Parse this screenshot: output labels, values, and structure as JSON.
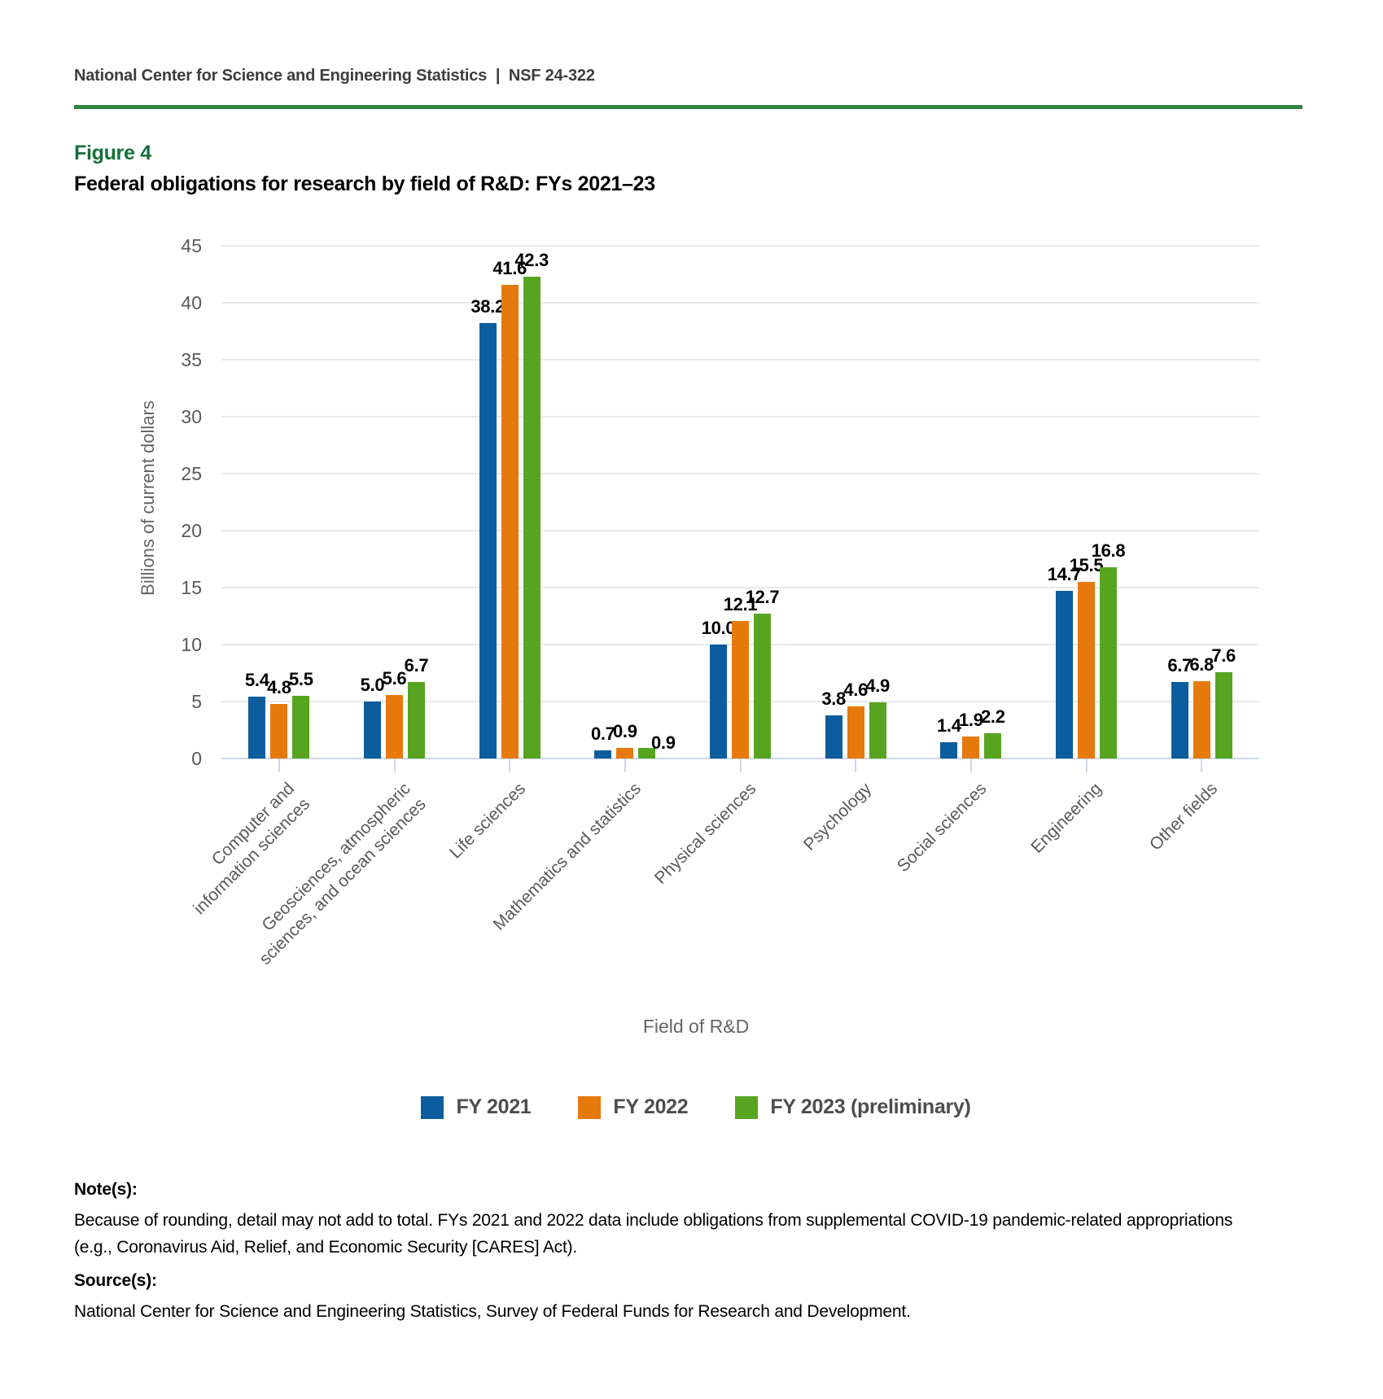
{
  "header": {
    "text": "National Center for Science and Engineering Statistics  |  NSF 24-322"
  },
  "figure": {
    "label": "Figure 4",
    "title": "Federal obligations for research by field of R&D: FYs 2021–23"
  },
  "chart_data": {
    "type": "bar",
    "categories": [
      "Computer and\ninformation sciences",
      "Geosciences, atmospheric\nsciences, and ocean sciences",
      "Life sciences",
      "Mathematics and statistics",
      "Physical sciences",
      "Psychology",
      "Social sciences",
      "Engineering",
      "Other fields"
    ],
    "series": [
      {
        "name": "FY 2021",
        "color": "#0c5d9d",
        "values": [
          5.4,
          5.0,
          38.2,
          0.7,
          10.0,
          3.8,
          1.4,
          14.7,
          6.7
        ],
        "labels": [
          "5.4",
          "5.0",
          "38.2",
          "0.7",
          "10.0",
          "3.8",
          "1.4",
          "14.7",
          "6.7"
        ]
      },
      {
        "name": "FY 2022",
        "color": "#e6790b",
        "values": [
          4.8,
          5.6,
          41.6,
          0.9,
          12.1,
          4.6,
          1.9,
          15.5,
          6.8
        ],
        "labels": [
          "4.8",
          "5.6",
          "41.6",
          "0.9",
          "12.1",
          "4.6",
          "1.9",
          "15.5",
          "6.8"
        ]
      },
      {
        "name": "FY 2023 (preliminary)",
        "color": "#57a421",
        "values": [
          5.5,
          6.7,
          42.3,
          0.9,
          12.7,
          4.9,
          2.2,
          16.8,
          7.6
        ],
        "labels": [
          "5.5",
          "6.7",
          "42.3",
          "0.9",
          "12.7",
          "4.9",
          "2.2",
          "16.8",
          "7.6"
        ]
      }
    ],
    "xlabel": "Field of R&D",
    "ylabel": "Billions of current dollars",
    "ylim": [
      0,
      45
    ],
    "ytick_step": 5,
    "grid": true,
    "legend_position": "bottom-center",
    "value_labels": true,
    "label_adjust": [
      {
        "series": 2,
        "index": 3,
        "dx": 20,
        "dy": 14
      }
    ]
  },
  "notes": {
    "heading": "Note(s):",
    "body": "Because of rounding, detail may not add to total. FYs 2021 and 2022 data include obligations from supplemental COVID-19 pandemic-related appropriations (e.g., Coronavirus Aid, Relief, and Economic Security [CARES] Act)."
  },
  "source": {
    "heading": "Source(s):",
    "body": "National Center for Science and Engineering Statistics, Survey of Federal Funds for Research and Development."
  },
  "colors": {
    "accent_green": "#2e8540",
    "figure_label_green": "#15703a"
  }
}
